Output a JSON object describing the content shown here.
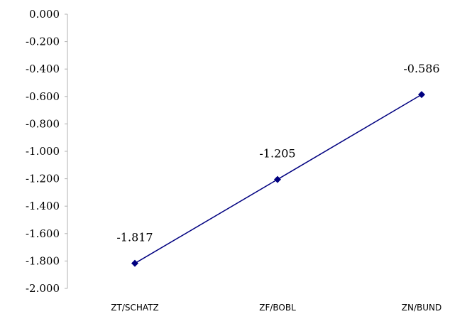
{
  "chart_data": {
    "type": "line",
    "title": "",
    "xlabel": "",
    "ylabel": "",
    "categories": [
      "ZT/SCHATZ",
      "ZF/BOBL",
      "ZN/BUND"
    ],
    "series": [
      {
        "values": [
          -1.817,
          -1.205,
          -0.586
        ],
        "labels": [
          "-1.817",
          "-1.205",
          "-0.586"
        ]
      }
    ],
    "ylim": [
      -2.0,
      0.0
    ],
    "yticks": [
      "0.000",
      "-0.200",
      "-0.400",
      "-0.600",
      "-0.800",
      "-1.000",
      "-1.200",
      "-1.400",
      "-1.600",
      "-1.800",
      "-2.000"
    ],
    "grid": false,
    "legend": "none",
    "line_color": "#000080",
    "marker": "diamond"
  }
}
